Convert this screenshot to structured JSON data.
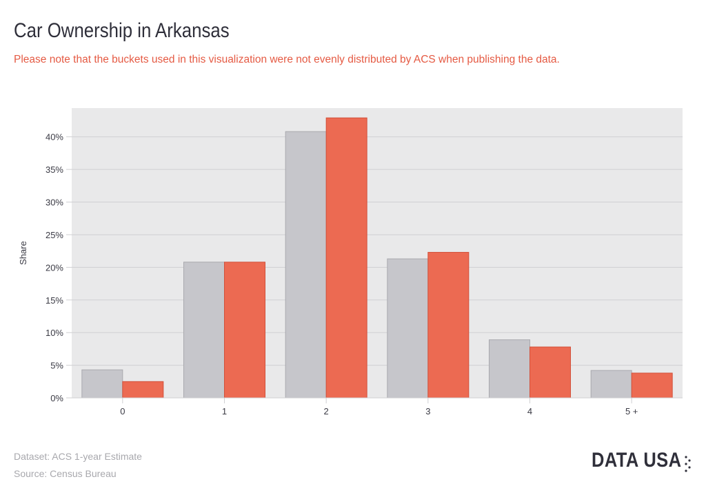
{
  "page": {
    "title": "Car Ownership in Arkansas",
    "subtitle": "Please note that the buckets used in this visualization were not evenly distributed by ACS when publishing the data.",
    "dataset": "Dataset: ACS 1-year Estimate",
    "source": "Source: Census Bureau",
    "logo_text": "DATA USA"
  },
  "colors": {
    "background_panel": "#e9e9ea",
    "series_1": "#c6c6cb",
    "series_2": "#ec6a52",
    "title": "#2f2f3a",
    "subtitle": "#e55a43",
    "footer": "#a8a8ad"
  },
  "chart_data": {
    "type": "bar",
    "title": "",
    "xlabel": "",
    "ylabel": "Share",
    "categories": [
      "0",
      "1",
      "2",
      "3",
      "4",
      "5 +"
    ],
    "series": [
      {
        "values": [
          4.3,
          20.8,
          40.8,
          21.3,
          8.9,
          4.2
        ]
      },
      {
        "values": [
          2.5,
          20.8,
          42.9,
          22.3,
          7.8,
          3.8
        ]
      }
    ],
    "ylim": [
      0,
      44.4
    ],
    "yticks": [
      0,
      5,
      10,
      15,
      20,
      25,
      30,
      35,
      40
    ],
    "ytick_labels": [
      "0%",
      "5%",
      "10%",
      "15%",
      "20%",
      "25%",
      "30%",
      "35%",
      "40%"
    ],
    "grid": true,
    "legend": "none"
  }
}
